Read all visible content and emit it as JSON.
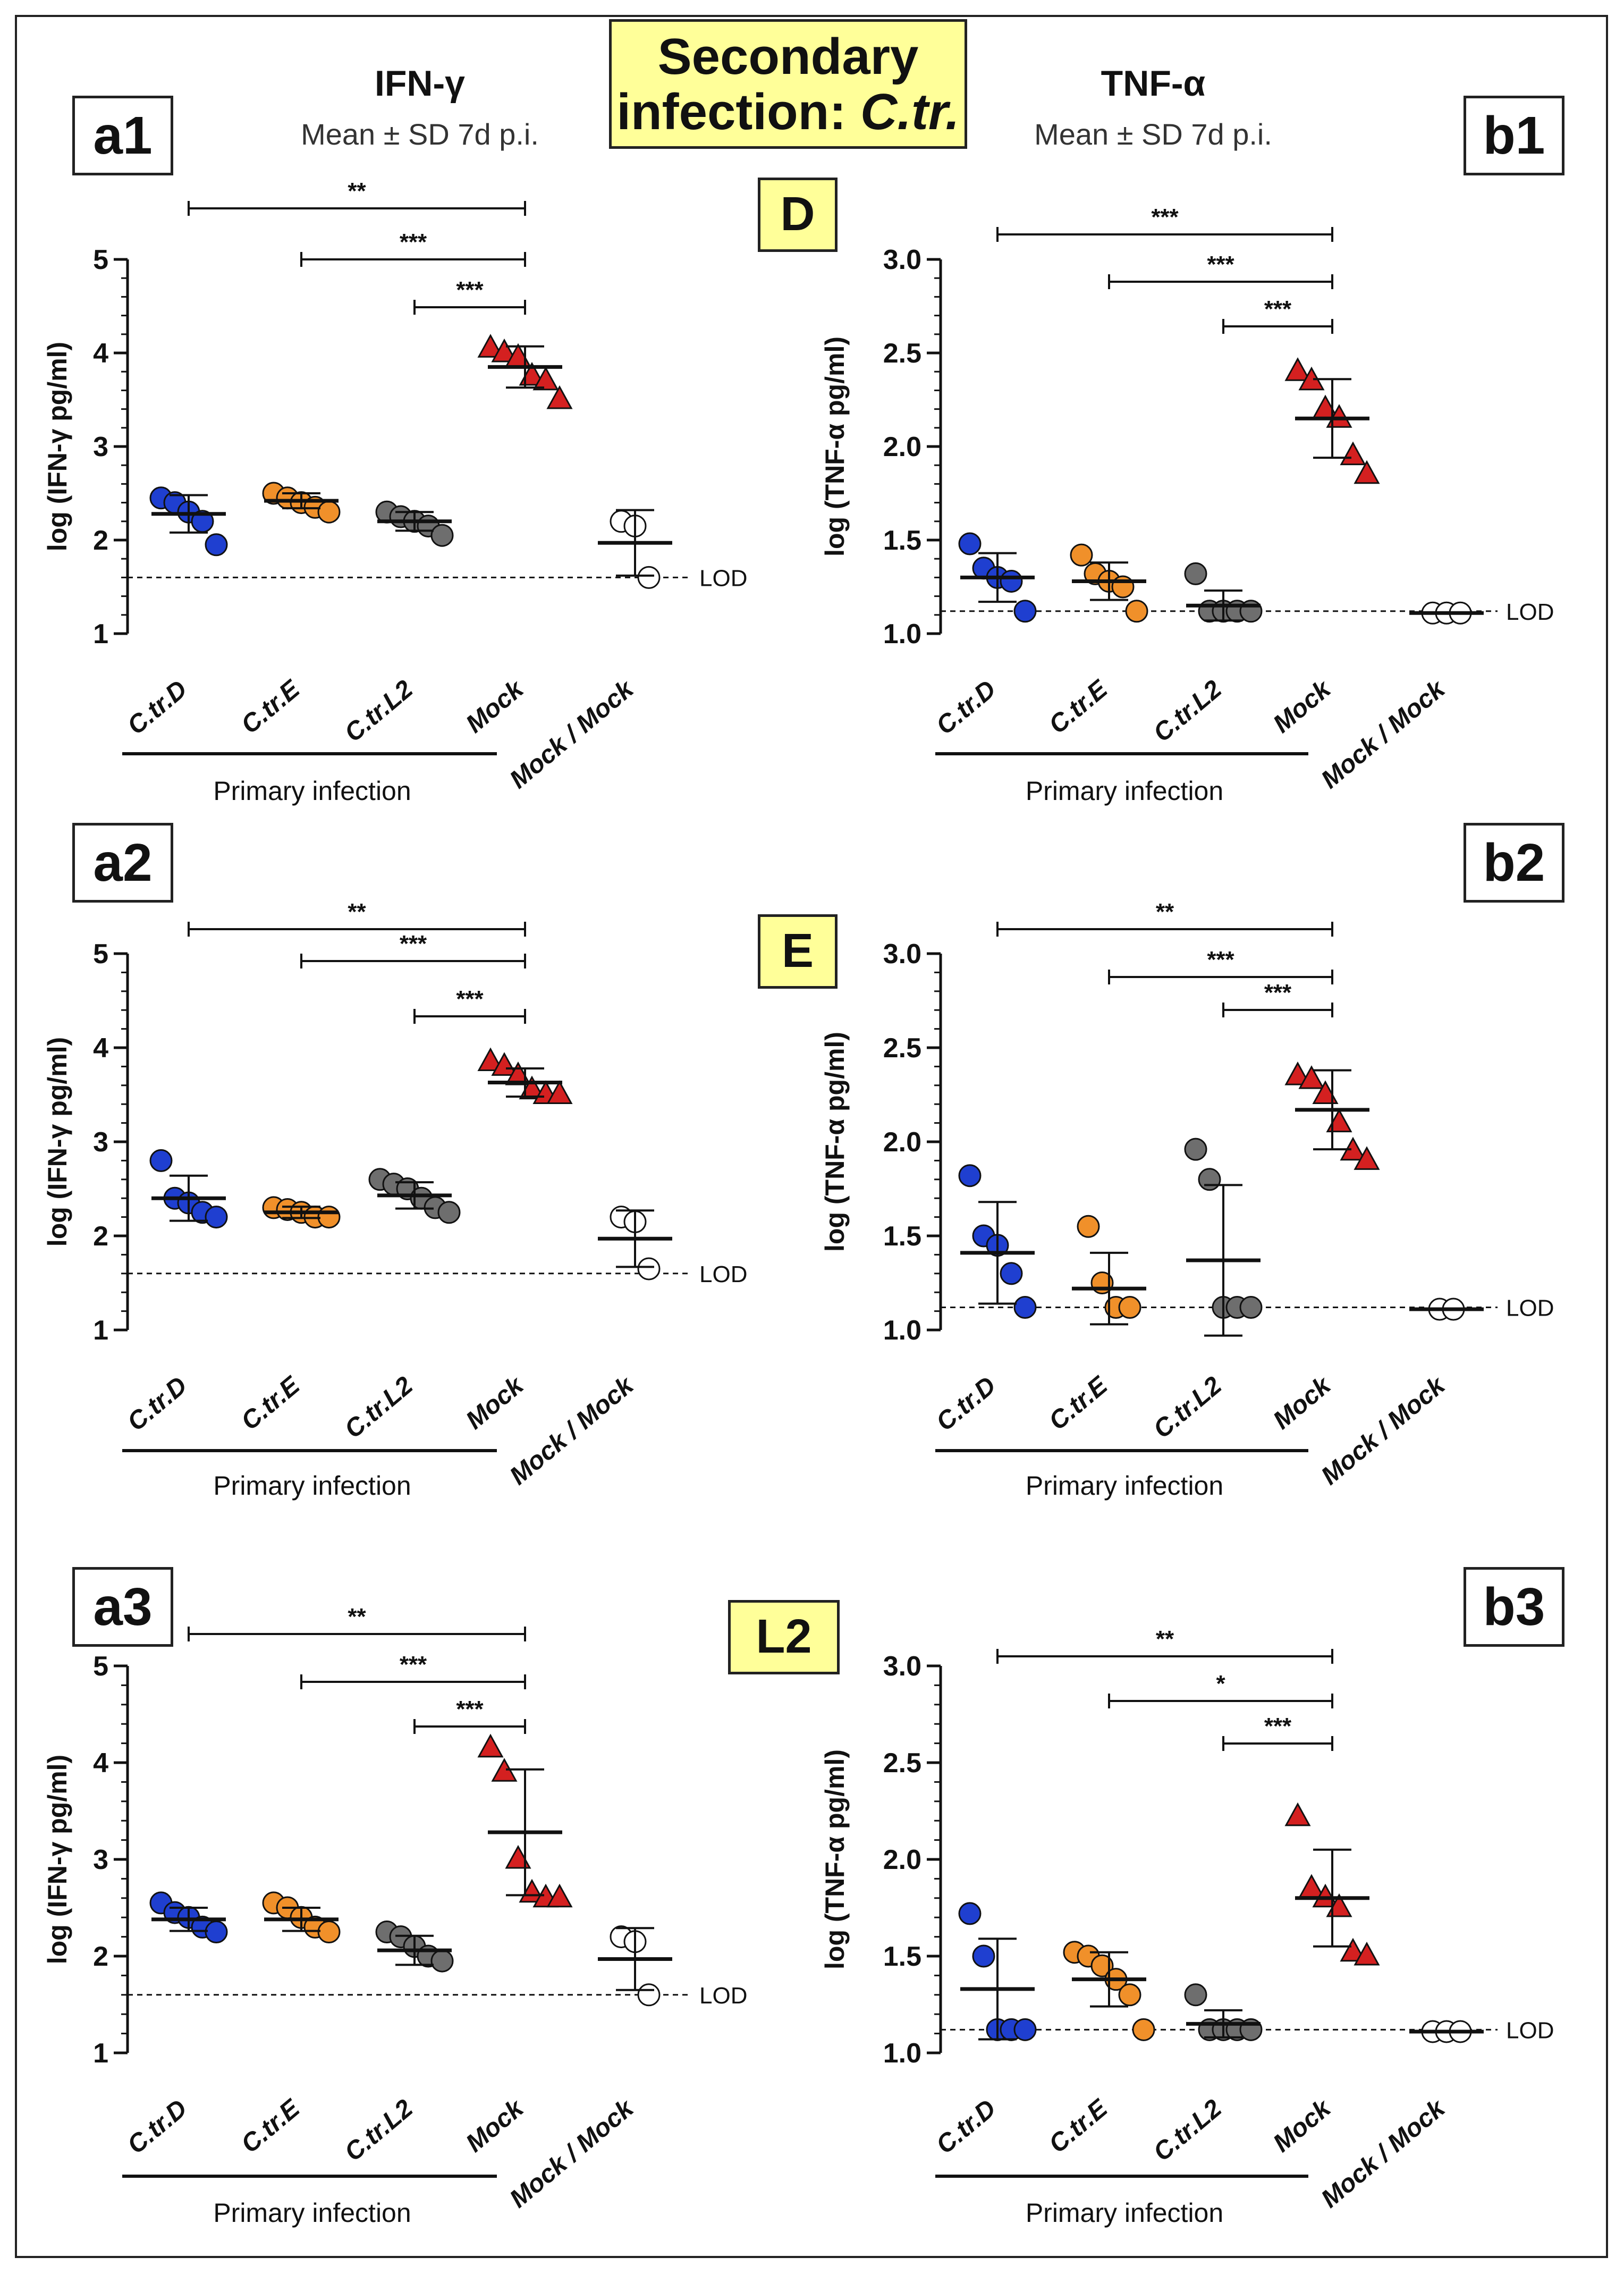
{
  "header": {
    "title_line1": "Secondary",
    "title_line2_prefix": "infection: ",
    "title_line2_italic": "C.tr.",
    "left_title": "IFN-γ",
    "right_title": "TNF-α",
    "subtitle": "Mean ± SD 7d p.i."
  },
  "row_labels": [
    "D",
    "E",
    "L2"
  ],
  "panel_labels": [
    "a1",
    "b1",
    "a2",
    "b2",
    "a3",
    "b3"
  ],
  "colors": {
    "ctrD": "#1f3fd0",
    "ctrE": "#f0902a",
    "ctrL2": "#6e6e6e",
    "mock": "#d42020",
    "mockmock": "#ffffff"
  },
  "chart_data": [
    {
      "id": "a1",
      "type": "scatter",
      "ylabel": "log (IFN-γ pg/ml)",
      "ylim": [
        1,
        5
      ],
      "yticks": [
        "1",
        "2",
        "3",
        "4",
        "5"
      ],
      "lod": 1.6,
      "lod_label": "LOD",
      "categories": [
        "C.tr.D",
        "C.tr.E",
        "C.tr.L2",
        "Mock",
        "Mock / Mock"
      ],
      "group_label": "Primary infection",
      "series": [
        {
          "name": "C.tr.D",
          "mean": 2.28,
          "sd": 0.2,
          "points": [
            2.45,
            2.4,
            2.3,
            2.2,
            1.95
          ]
        },
        {
          "name": "C.tr.E",
          "mean": 2.42,
          "sd": 0.08,
          "points": [
            2.5,
            2.45,
            2.4,
            2.35,
            2.3
          ]
        },
        {
          "name": "C.tr.L2",
          "mean": 2.2,
          "sd": 0.1,
          "points": [
            2.3,
            2.25,
            2.2,
            2.15,
            2.05
          ]
        },
        {
          "name": "Mock",
          "mean": 3.85,
          "sd": 0.22,
          "points": [
            4.05,
            4.0,
            3.95,
            3.75,
            3.7,
            3.5
          ]
        },
        {
          "name": "Mock / Mock",
          "mean": 1.97,
          "sd": 0.35,
          "points": [
            2.2,
            2.15,
            1.6
          ]
        }
      ],
      "significance": [
        {
          "from": "C.tr.D",
          "to": "Mock",
          "label": "**"
        },
        {
          "from": "C.tr.E",
          "to": "Mock",
          "label": "***"
        },
        {
          "from": "C.tr.L2",
          "to": "Mock",
          "label": "***"
        }
      ]
    },
    {
      "id": "b1",
      "type": "scatter",
      "ylabel": "log (TNF-α pg/ml)",
      "ylim": [
        1.0,
        3.0
      ],
      "yticks": [
        "1.0",
        "1.5",
        "2.0",
        "2.5",
        "3.0"
      ],
      "lod": 1.12,
      "lod_label": "LOD",
      "categories": [
        "C.tr.D",
        "C.tr.E",
        "C.tr.L2",
        "Mock",
        "Mock / Mock"
      ],
      "group_label": "Primary infection",
      "series": [
        {
          "name": "C.tr.D",
          "mean": 1.3,
          "sd": 0.13,
          "points": [
            1.48,
            1.35,
            1.3,
            1.28,
            1.12
          ]
        },
        {
          "name": "C.tr.E",
          "mean": 1.28,
          "sd": 0.1,
          "points": [
            1.42,
            1.32,
            1.28,
            1.25,
            1.12
          ]
        },
        {
          "name": "C.tr.L2",
          "mean": 1.15,
          "sd": 0.08,
          "points": [
            1.32,
            1.12,
            1.12,
            1.12,
            1.12
          ]
        },
        {
          "name": "Mock",
          "mean": 2.15,
          "sd": 0.21,
          "points": [
            2.4,
            2.35,
            2.2,
            2.15,
            1.95,
            1.85
          ]
        },
        {
          "name": "Mock / Mock",
          "mean": 1.11,
          "sd": 0,
          "points": [
            1.11,
            1.11,
            1.11
          ]
        }
      ],
      "significance": [
        {
          "from": "C.tr.D",
          "to": "Mock",
          "label": "***"
        },
        {
          "from": "C.tr.E",
          "to": "Mock",
          "label": "***"
        },
        {
          "from": "C.tr.L2",
          "to": "Mock",
          "label": "***"
        }
      ]
    },
    {
      "id": "a2",
      "type": "scatter",
      "ylabel": "log (IFN-γ pg/ml)",
      "ylim": [
        1,
        5
      ],
      "yticks": [
        "1",
        "2",
        "3",
        "4",
        "5"
      ],
      "lod": 1.6,
      "lod_label": "LOD",
      "categories": [
        "C.tr.D",
        "C.tr.E",
        "C.tr.L2",
        "Mock",
        "Mock / Mock"
      ],
      "group_label": "Primary infection",
      "series": [
        {
          "name": "C.tr.D",
          "mean": 2.4,
          "sd": 0.24,
          "points": [
            2.8,
            2.4,
            2.35,
            2.25,
            2.2
          ]
        },
        {
          "name": "C.tr.E",
          "mean": 2.25,
          "sd": 0.06,
          "points": [
            2.3,
            2.28,
            2.25,
            2.2,
            2.2
          ]
        },
        {
          "name": "C.tr.L2",
          "mean": 2.43,
          "sd": 0.14,
          "points": [
            2.6,
            2.55,
            2.5,
            2.4,
            2.3,
            2.25
          ]
        },
        {
          "name": "Mock",
          "mean": 3.63,
          "sd": 0.15,
          "points": [
            3.85,
            3.8,
            3.7,
            3.55,
            3.5,
            3.5
          ]
        },
        {
          "name": "Mock / Mock",
          "mean": 1.97,
          "sd": 0.3,
          "points": [
            2.2,
            2.15,
            1.65
          ]
        }
      ],
      "significance": [
        {
          "from": "C.tr.D",
          "to": "Mock",
          "label": "**"
        },
        {
          "from": "C.tr.E",
          "to": "Mock",
          "label": "***"
        },
        {
          "from": "C.tr.L2",
          "to": "Mock",
          "label": "***"
        }
      ]
    },
    {
      "id": "b2",
      "type": "scatter",
      "ylabel": "log (TNF-α pg/ml)",
      "ylim": [
        1.0,
        3.0
      ],
      "yticks": [
        "1.0",
        "1.5",
        "2.0",
        "2.5",
        "3.0"
      ],
      "lod": 1.12,
      "lod_label": "LOD",
      "categories": [
        "C.tr.D",
        "C.tr.E",
        "C.tr.L2",
        "Mock",
        "Mock / Mock"
      ],
      "group_label": "Primary infection",
      "series": [
        {
          "name": "C.tr.D",
          "mean": 1.41,
          "sd": 0.27,
          "points": [
            1.82,
            1.5,
            1.45,
            1.3,
            1.12
          ]
        },
        {
          "name": "C.tr.E",
          "mean": 1.22,
          "sd": 0.19,
          "points": [
            1.55,
            1.25,
            1.12,
            1.12
          ]
        },
        {
          "name": "C.tr.L2",
          "mean": 1.37,
          "sd": 0.4,
          "points": [
            1.96,
            1.8,
            1.12,
            1.12,
            1.12
          ]
        },
        {
          "name": "Mock",
          "mean": 2.17,
          "sd": 0.21,
          "points": [
            2.35,
            2.33,
            2.25,
            2.1,
            1.95,
            1.9
          ]
        },
        {
          "name": "Mock / Mock",
          "mean": 1.11,
          "sd": 0,
          "points": [
            1.11,
            1.11
          ]
        }
      ],
      "significance": [
        {
          "from": "C.tr.D",
          "to": "Mock",
          "label": "**"
        },
        {
          "from": "C.tr.E",
          "to": "Mock",
          "label": "***"
        },
        {
          "from": "C.tr.L2",
          "to": "Mock",
          "label": "***"
        }
      ]
    },
    {
      "id": "a3",
      "type": "scatter",
      "ylabel": "log (IFN-γ pg/ml)",
      "ylim": [
        1,
        5
      ],
      "yticks": [
        "1",
        "2",
        "3",
        "4",
        "5"
      ],
      "lod": 1.6,
      "lod_label": "LOD",
      "categories": [
        "C.tr.D",
        "C.tr.E",
        "C.tr.L2",
        "Mock",
        "Mock / Mock"
      ],
      "group_label": "Primary infection",
      "series": [
        {
          "name": "C.tr.D",
          "mean": 2.38,
          "sd": 0.12,
          "points": [
            2.55,
            2.45,
            2.4,
            2.3,
            2.25
          ]
        },
        {
          "name": "C.tr.E",
          "mean": 2.38,
          "sd": 0.12,
          "points": [
            2.55,
            2.5,
            2.4,
            2.3,
            2.25
          ]
        },
        {
          "name": "C.tr.L2",
          "mean": 2.06,
          "sd": 0.15,
          "points": [
            2.25,
            2.2,
            2.1,
            2.0,
            1.95
          ]
        },
        {
          "name": "Mock",
          "mean": 3.28,
          "sd": 0.65,
          "points": [
            4.15,
            3.9,
            3.0,
            2.65,
            2.6,
            2.6
          ]
        },
        {
          "name": "Mock / Mock",
          "mean": 1.97,
          "sd": 0.32,
          "points": [
            2.2,
            2.15,
            1.6
          ]
        }
      ],
      "significance": [
        {
          "from": "C.tr.D",
          "to": "Mock",
          "label": "**"
        },
        {
          "from": "C.tr.E",
          "to": "Mock",
          "label": "***"
        },
        {
          "from": "C.tr.L2",
          "to": "Mock",
          "label": "***"
        }
      ]
    },
    {
      "id": "b3",
      "type": "scatter",
      "ylabel": "log (TNF-α pg/ml)",
      "ylim": [
        1.0,
        3.0
      ],
      "yticks": [
        "1.0",
        "1.5",
        "2.0",
        "2.5",
        "3.0"
      ],
      "lod": 1.12,
      "lod_label": "LOD",
      "categories": [
        "C.tr.D",
        "C.tr.E",
        "C.tr.L2",
        "Mock",
        "Mock / Mock"
      ],
      "group_label": "Primary infection",
      "series": [
        {
          "name": "C.tr.D",
          "mean": 1.33,
          "sd": 0.26,
          "points": [
            1.72,
            1.5,
            1.12,
            1.12,
            1.12
          ]
        },
        {
          "name": "C.tr.E",
          "mean": 1.38,
          "sd": 0.14,
          "points": [
            1.52,
            1.5,
            1.45,
            1.38,
            1.3,
            1.12
          ]
        },
        {
          "name": "C.tr.L2",
          "mean": 1.15,
          "sd": 0.07,
          "points": [
            1.3,
            1.12,
            1.12,
            1.12,
            1.12
          ]
        },
        {
          "name": "Mock",
          "mean": 1.8,
          "sd": 0.25,
          "points": [
            2.22,
            1.85,
            1.8,
            1.75,
            1.52,
            1.5
          ]
        },
        {
          "name": "Mock / Mock",
          "mean": 1.11,
          "sd": 0,
          "points": [
            1.11,
            1.11,
            1.11
          ]
        }
      ],
      "significance": [
        {
          "from": "C.tr.D",
          "to": "Mock",
          "label": "**"
        },
        {
          "from": "C.tr.E",
          "to": "Mock",
          "label": "*"
        },
        {
          "from": "C.tr.L2",
          "to": "Mock",
          "label": "***"
        }
      ]
    }
  ]
}
